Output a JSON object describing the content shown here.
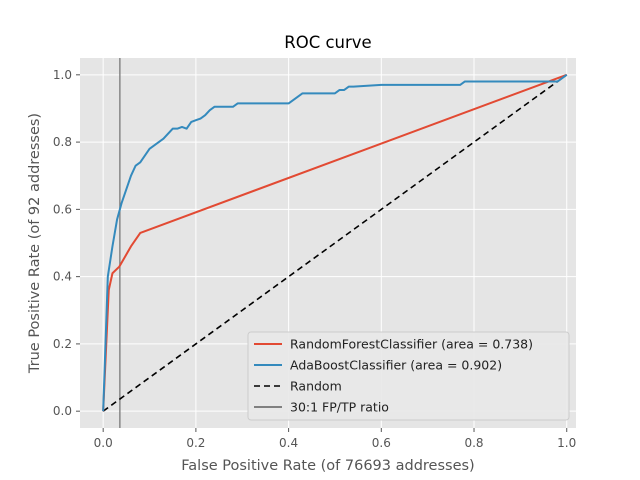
{
  "chart_data": {
    "type": "line",
    "title": "ROC curve",
    "xlabel": "False Positive Rate (of 76693 addresses)",
    "ylabel": "True Positive Rate (of 92 addresses)",
    "xlim": [
      -0.05,
      1.02
    ],
    "ylim": [
      -0.05,
      1.05
    ],
    "xticks": [
      0.0,
      0.2,
      0.4,
      0.6,
      0.8,
      1.0
    ],
    "xtick_labels": [
      "0.0",
      "0.2",
      "0.4",
      "0.6",
      "0.8",
      "1.0"
    ],
    "yticks": [
      0.0,
      0.2,
      0.4,
      0.6,
      0.8,
      1.0
    ],
    "ytick_labels": [
      "0.0",
      "0.2",
      "0.4",
      "0.6",
      "0.8",
      "1.0"
    ],
    "grid": true,
    "legend_position": "bottom-right",
    "series": [
      {
        "name": "RandomForestClassifier (area = 0.738)",
        "color": "#e24a33",
        "style": "solid",
        "x": [
          0.0,
          0.012,
          0.02,
          0.035,
          0.06,
          0.08,
          1.0
        ],
        "y": [
          0.0,
          0.36,
          0.41,
          0.43,
          0.49,
          0.53,
          1.0
        ]
      },
      {
        "name": "AdaBoostClassifier (area = 0.902)",
        "color": "#348abd",
        "style": "solid",
        "x": [
          0.0,
          0.01,
          0.02,
          0.03,
          0.04,
          0.05,
          0.06,
          0.07,
          0.08,
          0.09,
          0.1,
          0.11,
          0.12,
          0.13,
          0.14,
          0.15,
          0.16,
          0.17,
          0.18,
          0.19,
          0.2,
          0.21,
          0.22,
          0.23,
          0.24,
          0.25,
          0.26,
          0.27,
          0.28,
          0.29,
          0.3,
          0.35,
          0.4,
          0.41,
          0.42,
          0.43,
          0.44,
          0.46,
          0.48,
          0.5,
          0.51,
          0.52,
          0.53,
          0.54,
          0.6,
          0.7,
          0.77,
          0.78,
          0.8,
          0.9,
          0.98,
          1.0
        ],
        "y": [
          0.0,
          0.4,
          0.49,
          0.57,
          0.62,
          0.66,
          0.7,
          0.73,
          0.74,
          0.76,
          0.78,
          0.79,
          0.8,
          0.81,
          0.825,
          0.84,
          0.84,
          0.845,
          0.84,
          0.86,
          0.865,
          0.87,
          0.88,
          0.895,
          0.905,
          0.905,
          0.905,
          0.905,
          0.905,
          0.915,
          0.915,
          0.915,
          0.915,
          0.925,
          0.935,
          0.945,
          0.945,
          0.945,
          0.945,
          0.945,
          0.955,
          0.955,
          0.965,
          0.965,
          0.97,
          0.97,
          0.97,
          0.98,
          0.98,
          0.98,
          0.98,
          1.0
        ]
      },
      {
        "name": "Random",
        "color": "#000000",
        "style": "dashed",
        "x": [
          0.0,
          1.0
        ],
        "y": [
          0.0,
          1.0
        ]
      },
      {
        "name": "30:1 FP/TP ratio",
        "color": "#808080",
        "style": "solid",
        "orientation": "vertical",
        "x": [
          0.036,
          0.036
        ],
        "y": [
          -0.05,
          1.05
        ]
      }
    ]
  }
}
